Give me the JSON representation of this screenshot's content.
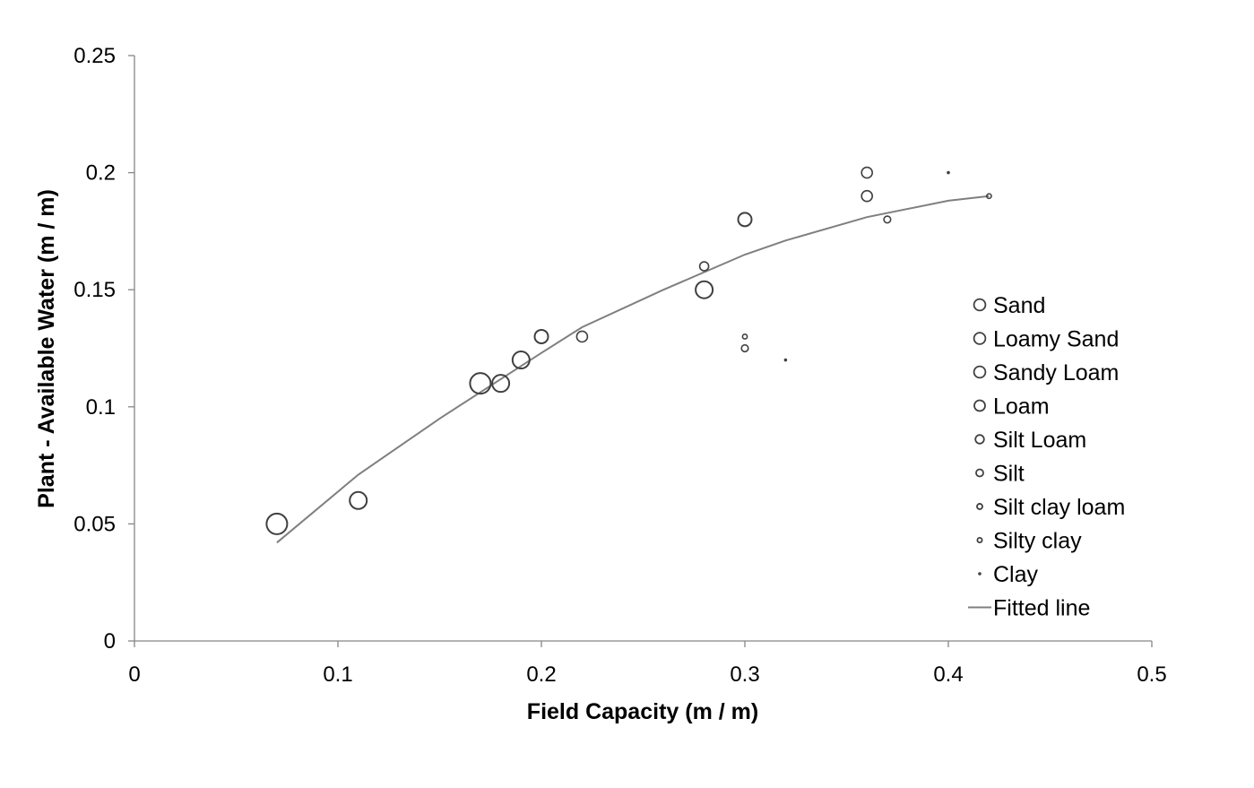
{
  "chart_data": {
    "type": "scatter",
    "xlabel": "Field Capacity (m / m)",
    "ylabel": "Plant - Available Water (m / m)",
    "xlim": [
      0,
      0.5
    ],
    "ylim": [
      0,
      0.25
    ],
    "x_ticks": [
      "0",
      "0.1",
      "0.2",
      "0.3",
      "0.4",
      "0.5"
    ],
    "y_ticks": [
      "0",
      "0.05",
      "0.1",
      "0.15",
      "0.2",
      "0.25"
    ],
    "grid": false,
    "legend_position": "right",
    "marker_color": "#404040",
    "line_color": "#7f7f7f",
    "series": [
      {
        "name": "Sand",
        "marker_size": "largest",
        "points": [
          {
            "x": 0.07,
            "y": 0.05
          },
          {
            "x": 0.17,
            "y": 0.11
          }
        ]
      },
      {
        "name": "Loamy Sand",
        "marker_size": "large",
        "points": [
          {
            "x": 0.11,
            "y": 0.06
          },
          {
            "x": 0.19,
            "y": 0.12
          }
        ]
      },
      {
        "name": "Sandy Loam",
        "marker_size": "large",
        "points": [
          {
            "x": 0.18,
            "y": 0.11
          },
          {
            "x": 0.28,
            "y": 0.15
          }
        ]
      },
      {
        "name": "Loam",
        "marker_size": "medium-large",
        "points": [
          {
            "x": 0.2,
            "y": 0.13
          },
          {
            "x": 0.3,
            "y": 0.18
          }
        ]
      },
      {
        "name": "Silt Loam",
        "marker_size": "medium",
        "points": [
          {
            "x": 0.22,
            "y": 0.13
          },
          {
            "x": 0.36,
            "y": 0.19
          },
          {
            "x": 0.36,
            "y": 0.2
          }
        ]
      },
      {
        "name": "Silt",
        "marker_size": "small",
        "points": [
          {
            "x": 0.28,
            "y": 0.16
          }
        ]
      },
      {
        "name": "Silt clay loam",
        "marker_size": "smaller",
        "points": [
          {
            "x": 0.3,
            "y": 0.125
          },
          {
            "x": 0.37,
            "y": 0.18
          }
        ]
      },
      {
        "name": "Silty clay",
        "marker_size": "tiny",
        "points": [
          {
            "x": 0.3,
            "y": 0.13
          },
          {
            "x": 0.42,
            "y": 0.19
          }
        ]
      },
      {
        "name": "Clay",
        "marker_size": "dot",
        "points": [
          {
            "x": 0.32,
            "y": 0.12
          },
          {
            "x": 0.4,
            "y": 0.2
          }
        ]
      }
    ],
    "fitted_line": {
      "name": "Fitted line",
      "points": [
        {
          "x": 0.07,
          "y": 0.042
        },
        {
          "x": 0.11,
          "y": 0.071
        },
        {
          "x": 0.15,
          "y": 0.095
        },
        {
          "x": 0.2,
          "y": 0.123
        },
        {
          "x": 0.22,
          "y": 0.134
        },
        {
          "x": 0.26,
          "y": 0.15
        },
        {
          "x": 0.3,
          "y": 0.165
        },
        {
          "x": 0.32,
          "y": 0.171
        },
        {
          "x": 0.36,
          "y": 0.181
        },
        {
          "x": 0.4,
          "y": 0.188
        },
        {
          "x": 0.42,
          "y": 0.19
        }
      ]
    }
  }
}
